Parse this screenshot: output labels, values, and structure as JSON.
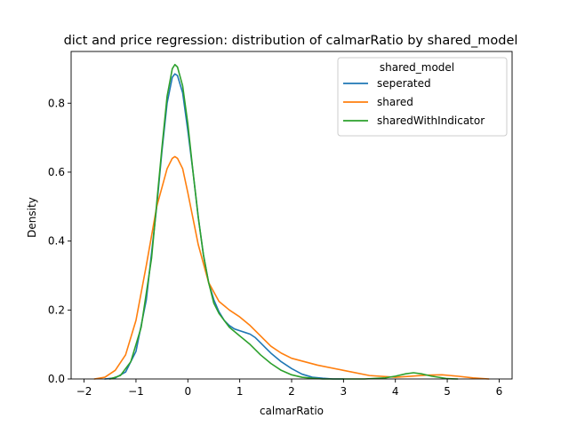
{
  "chart_data": {
    "type": "line",
    "title": "dict and price regression: distribution of calmarRatio by shared_model",
    "xlabel": "calmarRatio",
    "ylabel": "Density",
    "xlim": [
      -2.25,
      6.25
    ],
    "ylim": [
      0,
      0.95
    ],
    "xticks": [
      -2,
      -1,
      0,
      1,
      2,
      3,
      4,
      5,
      6
    ],
    "yticks": [
      0.0,
      0.2,
      0.4,
      0.6,
      0.8
    ],
    "ytick_labels": [
      "0.0",
      "0.2",
      "0.4",
      "0.6",
      "0.8"
    ],
    "grid": false,
    "legend": {
      "title": "shared_model",
      "position": "top-right"
    },
    "series": [
      {
        "name": "seperated",
        "color": "#1f77b4",
        "x": [
          -1.6,
          -1.4,
          -1.2,
          -1.0,
          -0.8,
          -0.6,
          -0.5,
          -0.4,
          -0.3,
          -0.25,
          -0.2,
          -0.1,
          0.0,
          0.1,
          0.2,
          0.3,
          0.4,
          0.5,
          0.6,
          0.7,
          0.8,
          0.9,
          1.0,
          1.1,
          1.2,
          1.3,
          1.4,
          1.5,
          1.6,
          1.8,
          2.0,
          2.2,
          2.4,
          2.6,
          2.8,
          3.0
        ],
        "y": [
          0.0,
          0.003,
          0.02,
          0.08,
          0.23,
          0.5,
          0.66,
          0.8,
          0.875,
          0.885,
          0.88,
          0.83,
          0.72,
          0.6,
          0.47,
          0.36,
          0.28,
          0.23,
          0.195,
          0.17,
          0.155,
          0.145,
          0.14,
          0.135,
          0.13,
          0.12,
          0.105,
          0.09,
          0.075,
          0.05,
          0.03,
          0.014,
          0.005,
          0.002,
          0.0,
          0.0
        ]
      },
      {
        "name": "shared",
        "color": "#ff7f0e",
        "x": [
          -1.8,
          -1.6,
          -1.4,
          -1.2,
          -1.0,
          -0.8,
          -0.6,
          -0.4,
          -0.3,
          -0.25,
          -0.2,
          -0.1,
          0.0,
          0.2,
          0.4,
          0.6,
          0.8,
          1.0,
          1.2,
          1.4,
          1.6,
          1.8,
          2.0,
          2.5,
          3.0,
          3.5,
          4.0,
          4.3,
          4.6,
          4.9,
          5.2,
          5.5,
          5.8
        ],
        "y": [
          0.0,
          0.005,
          0.025,
          0.07,
          0.17,
          0.33,
          0.5,
          0.61,
          0.64,
          0.645,
          0.64,
          0.61,
          0.54,
          0.39,
          0.28,
          0.225,
          0.2,
          0.18,
          0.155,
          0.125,
          0.095,
          0.075,
          0.06,
          0.04,
          0.025,
          0.01,
          0.005,
          0.008,
          0.011,
          0.012,
          0.008,
          0.003,
          0.0
        ]
      },
      {
        "name": "sharedWithIndicator",
        "color": "#2ca02c",
        "x": [
          -1.5,
          -1.3,
          -1.1,
          -0.9,
          -0.7,
          -0.5,
          -0.4,
          -0.3,
          -0.25,
          -0.2,
          -0.1,
          0.0,
          0.1,
          0.2,
          0.3,
          0.4,
          0.5,
          0.6,
          0.8,
          1.0,
          1.2,
          1.4,
          1.6,
          1.8,
          2.0,
          2.2,
          2.4,
          2.6,
          3.0,
          3.4,
          3.8,
          4.0,
          4.2,
          4.35,
          4.5,
          4.7,
          5.0,
          5.2
        ],
        "y": [
          0.0,
          0.01,
          0.05,
          0.15,
          0.35,
          0.67,
          0.82,
          0.9,
          0.912,
          0.905,
          0.85,
          0.74,
          0.6,
          0.47,
          0.36,
          0.28,
          0.22,
          0.19,
          0.15,
          0.125,
          0.1,
          0.07,
          0.045,
          0.025,
          0.012,
          0.005,
          0.002,
          0.0,
          0.0,
          0.0,
          0.003,
          0.008,
          0.015,
          0.018,
          0.015,
          0.008,
          0.001,
          0.0
        ]
      }
    ]
  }
}
